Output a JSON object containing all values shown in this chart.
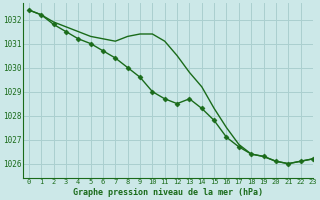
{
  "background_color": "#cce8e8",
  "grid_color": "#aacfcf",
  "line_color": "#1a6b1a",
  "title": "Graphe pression niveau de la mer (hPa)",
  "xlim": [
    -0.5,
    23
  ],
  "ylim": [
    1025.4,
    1032.7
  ],
  "yticks": [
    1026,
    1027,
    1028,
    1029,
    1030,
    1031,
    1032
  ],
  "xticks": [
    0,
    1,
    2,
    3,
    4,
    5,
    6,
    7,
    8,
    9,
    10,
    11,
    12,
    13,
    14,
    15,
    16,
    17,
    18,
    19,
    20,
    21,
    22,
    23
  ],
  "series1_x": [
    0,
    1,
    2,
    3,
    4,
    5,
    6,
    7,
    8,
    9,
    10,
    11,
    12,
    13,
    14,
    15,
    16,
    17,
    18,
    19,
    20,
    21,
    22,
    23
  ],
  "series1_y": [
    1032.4,
    1032.2,
    1031.9,
    1031.7,
    1031.5,
    1031.3,
    1031.2,
    1031.1,
    1031.3,
    1031.4,
    1031.4,
    1031.1,
    1030.5,
    1029.8,
    1029.2,
    1028.3,
    1027.5,
    1026.8,
    1026.4,
    1026.3,
    1026.1,
    1026.0,
    1026.1,
    1026.2
  ],
  "series2_x": [
    0,
    1,
    2,
    3,
    4,
    5,
    6,
    7,
    8,
    9,
    10,
    11,
    12,
    13,
    14,
    15,
    16,
    17,
    18,
    19,
    20,
    21,
    22,
    23
  ],
  "series2_y": [
    1032.4,
    1032.2,
    1031.8,
    1031.5,
    1031.2,
    1031.0,
    1030.7,
    1030.4,
    1030.0,
    1029.6,
    1029.0,
    1028.7,
    1028.5,
    1028.7,
    1028.3,
    1027.8,
    1027.1,
    1026.7,
    1026.4,
    1026.3,
    1026.1,
    1026.0,
    1026.1,
    1026.2
  ]
}
